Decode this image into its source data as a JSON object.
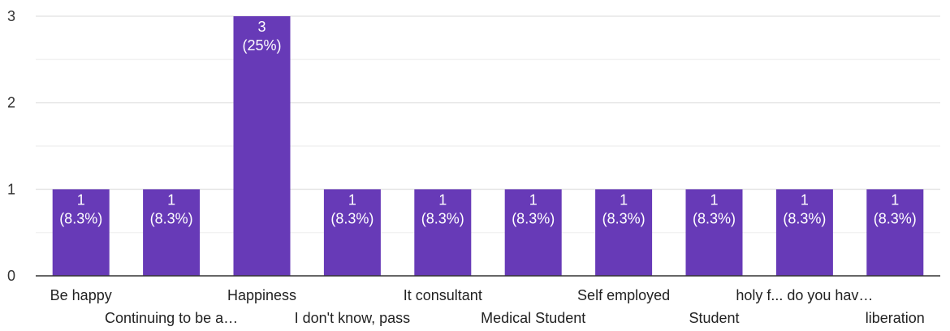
{
  "chart_data": {
    "type": "bar",
    "categories": [
      "Be happy",
      "Continuing to be a…",
      "Happiness",
      "I don't know, pass",
      "It consultant",
      "Medical Student",
      "Self employed",
      "Student",
      "holy f... do you hav…",
      "liberation"
    ],
    "values": [
      1,
      1,
      3,
      1,
      1,
      1,
      1,
      1,
      1,
      1
    ],
    "data_labels": [
      [
        "1",
        "(8.3%)"
      ],
      [
        "1",
        "(8.3%)"
      ],
      [
        "3",
        "(25%)"
      ],
      [
        "1",
        "(8.3%)"
      ],
      [
        "1",
        "(8.3%)"
      ],
      [
        "1",
        "(8.3%)"
      ],
      [
        "1",
        "(8.3%)"
      ],
      [
        "1",
        "(8.3%)"
      ],
      [
        "1",
        "(8.3%)"
      ],
      [
        "1",
        "(8.3%)"
      ]
    ],
    "y_ticks": [
      0,
      1,
      2,
      3
    ],
    "ylim": [
      0,
      3
    ],
    "grid": true,
    "bar_color": "#673ab7",
    "title": "",
    "xlabel": "",
    "ylabel": ""
  }
}
